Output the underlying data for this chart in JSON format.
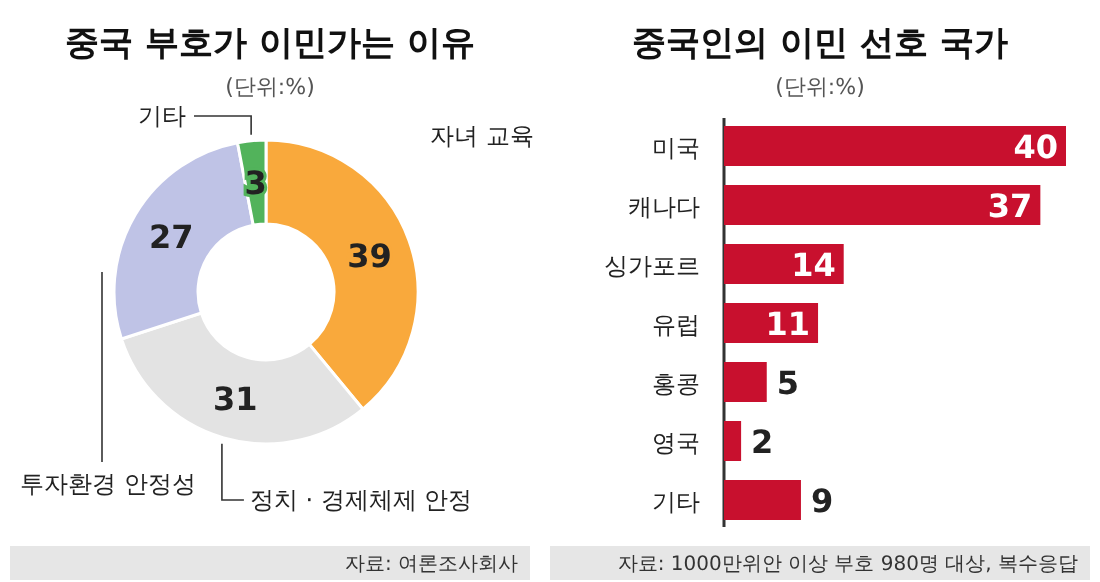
{
  "chart_data": [
    {
      "type": "donut",
      "title": "중국 부호가 이민가는 이유",
      "subtitle": "(단위:%)",
      "categories": [
        "자녀 교육",
        "정치 · 경제체제 안정",
        "투자환경 안정성",
        "기타"
      ],
      "values": [
        39,
        31,
        27,
        3
      ],
      "colors": [
        "#f9a93c",
        "#e3e3e3",
        "#bfc3e6",
        "#52b35b"
      ],
      "data_labels": true,
      "annotations": [
        "자료: 여론조사회사"
      ]
    },
    {
      "type": "bar",
      "orientation": "horizontal",
      "title": "중국인의 이민 선호 국가",
      "subtitle": "(단위:%)",
      "categories": [
        "미국",
        "캐나다",
        "싱가포르",
        "유럽",
        "홍콩",
        "영국",
        "기타"
      ],
      "values": [
        40,
        37,
        14,
        11,
        5,
        2,
        9
      ],
      "color": "#c8102e",
      "data_labels": true,
      "annotations": [
        "자료: 1000만위안 이상 부호 980명 대상, 복수응답"
      ]
    }
  ]
}
